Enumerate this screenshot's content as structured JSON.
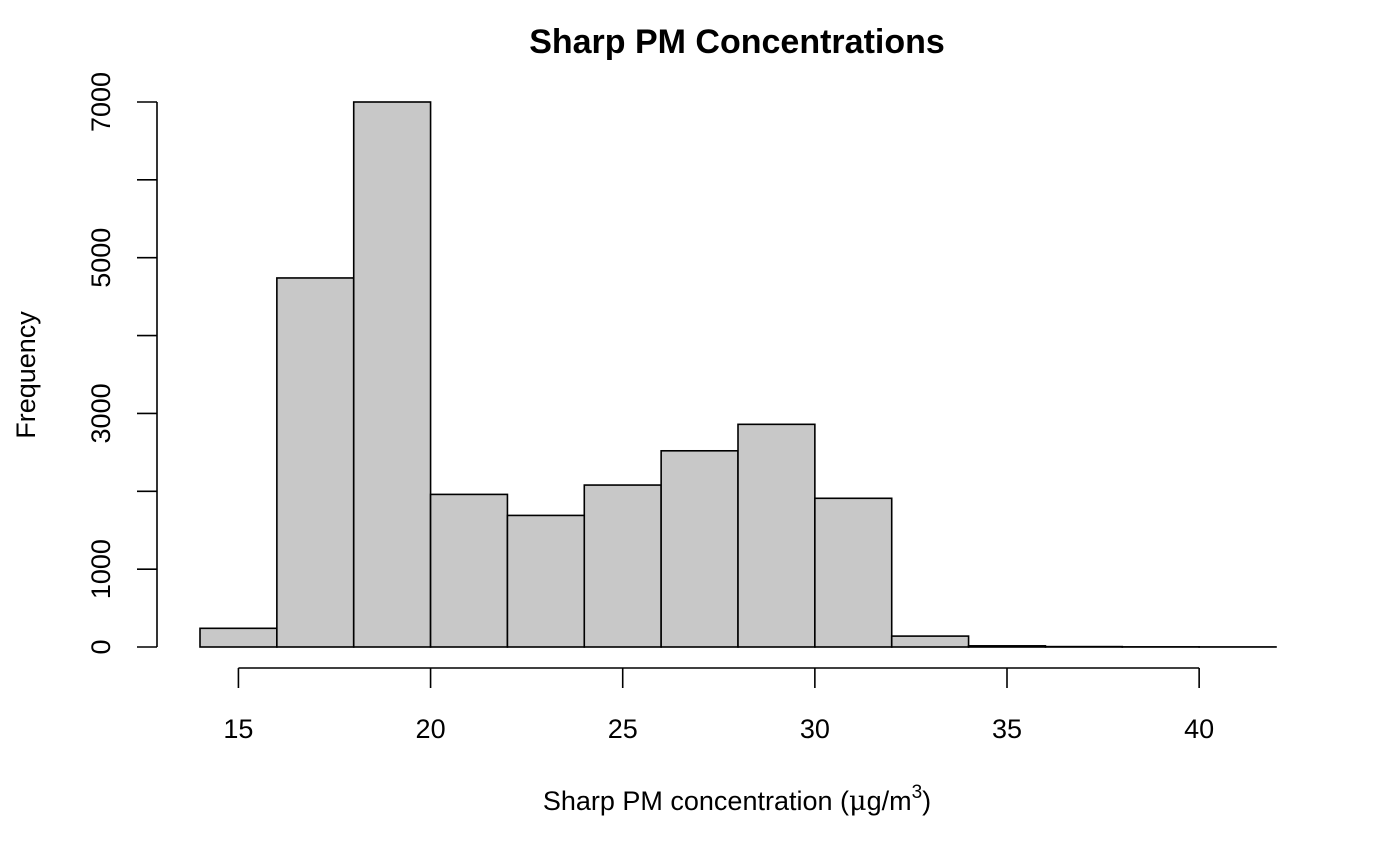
{
  "chart_data": {
    "type": "bar",
    "subtype": "histogram",
    "title": "Sharp PM Concentrations",
    "xlabel": "Sharp PM concentration (μg/m³)",
    "xlabel_parts": {
      "prefix": "Sharp PM concentration (",
      "mu": "μ",
      "unit": "g/m",
      "exp": "3",
      "suffix": ")"
    },
    "ylabel": "Frequency",
    "bins": [
      {
        "from": 14,
        "to": 16,
        "count": 240
      },
      {
        "from": 16,
        "to": 18,
        "count": 4740
      },
      {
        "from": 18,
        "to": 20,
        "count": 7000
      },
      {
        "from": 20,
        "to": 22,
        "count": 1960
      },
      {
        "from": 22,
        "to": 24,
        "count": 1690
      },
      {
        "from": 24,
        "to": 26,
        "count": 2080
      },
      {
        "from": 26,
        "to": 28,
        "count": 2520
      },
      {
        "from": 28,
        "to": 30,
        "count": 2860
      },
      {
        "from": 30,
        "to": 32,
        "count": 1910
      },
      {
        "from": 32,
        "to": 34,
        "count": 140
      },
      {
        "from": 34,
        "to": 36,
        "count": 15
      },
      {
        "from": 36,
        "to": 38,
        "count": 5
      },
      {
        "from": 38,
        "to": 40,
        "count": 2
      },
      {
        "from": 40,
        "to": 42,
        "count": 1
      }
    ],
    "x_ticks": [
      15,
      20,
      25,
      30,
      35,
      40
    ],
    "y_ticks": [
      0,
      1000,
      2000,
      3000,
      4000,
      5000,
      6000,
      7000
    ],
    "y_tick_labels": [
      {
        "value": 0,
        "label": "0"
      },
      {
        "value": 1000,
        "label": "1000"
      },
      {
        "value": 3000,
        "label": "3000"
      },
      {
        "value": 5000,
        "label": "5000"
      },
      {
        "value": 7000,
        "label": "7000"
      }
    ],
    "xlim": [
      14,
      42
    ],
    "ylim": [
      0,
      7000
    ],
    "grid": false,
    "bar_color": "#c8c8c8",
    "bar_stroke": "#000000"
  }
}
